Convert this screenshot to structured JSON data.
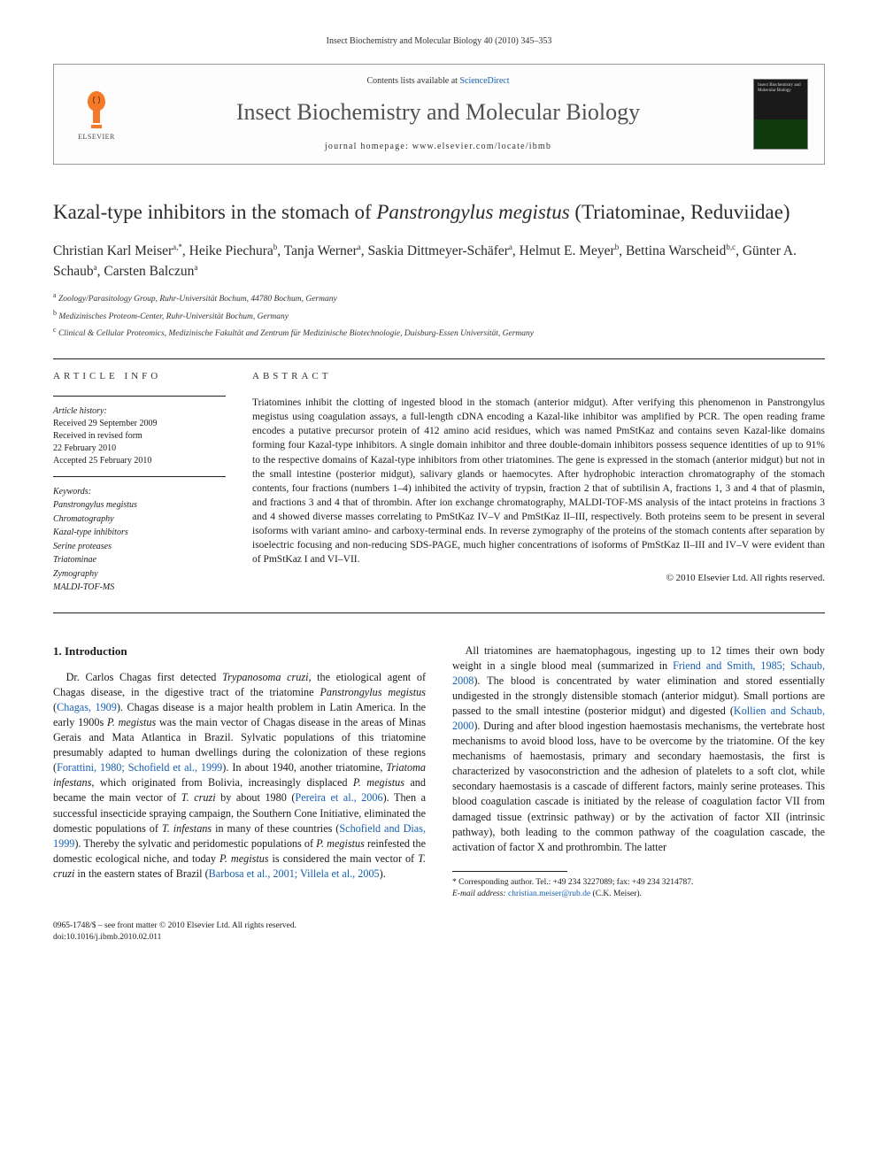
{
  "running_head": "Insect Biochemistry and Molecular Biology 40 (2010) 345–353",
  "header": {
    "contents_text": "Contents lists available at ",
    "contents_link": "ScienceDirect",
    "journal_title": "Insect Biochemistry and Molecular Biology",
    "homepage_label": "journal homepage: ",
    "homepage_url": "www.elsevier.com/locate/ibmb",
    "publisher": "ELSEVIER",
    "cover_text": "Insect Biochemistry and Molecular Biology",
    "logo_color": "#f47a2a",
    "link_color": "#1560b3"
  },
  "article": {
    "title_pre": "Kazal-type inhibitors in the stomach of ",
    "title_species": "Panstrongylus megistus",
    "title_post": " (Triatominae, Reduviidae)",
    "authors_html": "Christian Karl Meiser<sup>a,*</sup>, Heike Piechura<sup>b</sup>, Tanja Werner<sup>a</sup>, Saskia Dittmeyer-Schäfer<sup>a</sup>, Helmut E. Meyer<sup>b</sup>, Bettina Warscheid<sup>b,c</sup>, Günter A. Schaub<sup>a</sup>, Carsten Balczun<sup>a</sup>",
    "affiliations": [
      "a Zoology/Parasitology Group, Ruhr-Universität Bochum, 44780 Bochum, Germany",
      "b Medizinisches Proteom-Center, Ruhr-Universität Bochum, Germany",
      "c Clinical & Cellular Proteomics, Medizinische Fakultät and Zentrum für Medizinische Biotechnologie, Duisburg-Essen Universität, Germany"
    ]
  },
  "info": {
    "head": "ARTICLE INFO",
    "history_label": "Article history:",
    "history": [
      "Received 29 September 2009",
      "Received in revised form",
      "22 February 2010",
      "Accepted 25 February 2010"
    ],
    "keywords_label": "Keywords:",
    "keywords": [
      "Panstrongylus megistus",
      "Chromatography",
      "Kazal-type inhibitors",
      "Serine proteases",
      "Triatominae",
      "Zymography",
      "MALDI-TOF-MS"
    ]
  },
  "abstract": {
    "head": "ABSTRACT",
    "text": "Triatomines inhibit the clotting of ingested blood in the stomach (anterior midgut). After verifying this phenomenon in Panstrongylus megistus using coagulation assays, a full-length cDNA encoding a Kazal-like inhibitor was amplified by PCR. The open reading frame encodes a putative precursor protein of 412 amino acid residues, which was named PmStKaz and contains seven Kazal-like domains forming four Kazal-type inhibitors. A single domain inhibitor and three double-domain inhibitors possess sequence identities of up to 91% to the respective domains of Kazal-type inhibitors from other triatomines. The gene is expressed in the stomach (anterior midgut) but not in the small intestine (posterior midgut), salivary glands or haemocytes. After hydrophobic interaction chromatography of the stomach contents, four fractions (numbers 1–4) inhibited the activity of trypsin, fraction 2 that of subtilisin A, fractions 1, 3 and 4 that of plasmin, and fractions 3 and 4 that of thrombin. After ion exchange chromatography, MALDI-TOF-MS analysis of the intact proteins in fractions 3 and 4 showed diverse masses correlating to PmStKaz IV–V and PmStKaz II–III, respectively. Both proteins seem to be present in several isoforms with variant amino- and carboxy-terminal ends. In reverse zymography of the proteins of the stomach contents after separation by isoelectric focusing and non-reducing SDS-PAGE, much higher concentrations of isoforms of PmStKaz II–III and IV–V were evident than of PmStKaz I and VI–VII.",
    "copyright": "© 2010 Elsevier Ltd. All rights reserved."
  },
  "body": {
    "section_heading": "1. Introduction",
    "para1_html": "Dr. Carlos Chagas first detected <span class=\"ital\">Trypanosoma cruzi</span>, the etiological agent of Chagas disease, in the digestive tract of the triatomine <span class=\"ital\">Panstrongylus megistus</span> (<a href=\"#\" data-name=\"ref-link\" data-interactable=\"true\">Chagas, 1909</a>). Chagas disease is a major health problem in Latin America. In the early 1900s <span class=\"ital\">P. megistus</span> was the main vector of Chagas disease in the areas of Minas Gerais and Mata Atlantica in Brazil. Sylvatic populations of this triatomine presumably adapted to human dwellings during the colonization of these regions (<a href=\"#\" data-name=\"ref-link\" data-interactable=\"true\">Forattini, 1980; Schofield et al., 1999</a>). In about 1940, another triatomine, <span class=\"ital\">Triatoma infestans</span>, which originated from Bolivia, increasingly displaced <span class=\"ital\">P. megistus</span> and became the main vector of <span class=\"ital\">T. cruzi</span> by about 1980 (<a href=\"#\" data-name=\"ref-link\" data-interactable=\"true\">Pereira et al., 2006</a>). Then a successful insecticide spraying campaign, the Southern Cone Initiative, eliminated the domestic populations of <span class=\"ital\">T. infestans</span> in many of these countries (<a href=\"#\" data-name=\"ref-link\" data-interactable=\"true\">Schofield and Dias, 1999</a>). Thereby the sylvatic and peridomestic populations of <span class=\"ital\">P. megistus</span> reinfested the domestic ecological niche, and today <span class=\"ital\">P. megistus</span> is considered the main vector of <span class=\"ital\">T. cruzi</span> in the eastern states of Brazil (<a href=\"#\" data-name=\"ref-link\" data-interactable=\"true\">Barbosa et al., 2001; Villela et al., 2005</a>).",
    "para2_html": "All triatomines are haematophagous, ingesting up to 12 times their own body weight in a single blood meal (summarized in <a href=\"#\" data-name=\"ref-link\" data-interactable=\"true\">Friend and Smith, 1985; Schaub, 2008</a>). The blood is concentrated by water elimination and stored essentially undigested in the strongly distensible stomach (anterior midgut). Small portions are passed to the small intestine (posterior midgut) and digested (<a href=\"#\" data-name=\"ref-link\" data-interactable=\"true\">Kollien and Schaub, 2000</a>). During and after blood ingestion haemostasis mechanisms, the vertebrate host mechanisms to avoid blood loss, have to be overcome by the triatomine. Of the key mechanisms of haemostasis, primary and secondary haemostasis, the first is characterized by vasoconstriction and the adhesion of platelets to a soft clot, while secondary haemostasis is a cascade of different factors, mainly serine proteases. This blood coagulation cascade is initiated by the release of coagulation factor VII from damaged tissue (extrinsic pathway) or by the activation of factor XII (intrinsic pathway), both leading to the common pathway of the coagulation cascade, the activation of factor X and prothrombin. The latter"
  },
  "corr": {
    "line1": "* Corresponding author. Tel.: +49 234 3227089; fax: +49 234 3214787.",
    "line2_pre": "E-mail address: ",
    "email": "christian.meiser@rub.de",
    "line2_post": " (C.K. Meiser)."
  },
  "footer": {
    "line1": "0965-1748/$ – see front matter © 2010 Elsevier Ltd. All rights reserved.",
    "line2": "doi:10.1016/j.ibmb.2010.02.011"
  }
}
